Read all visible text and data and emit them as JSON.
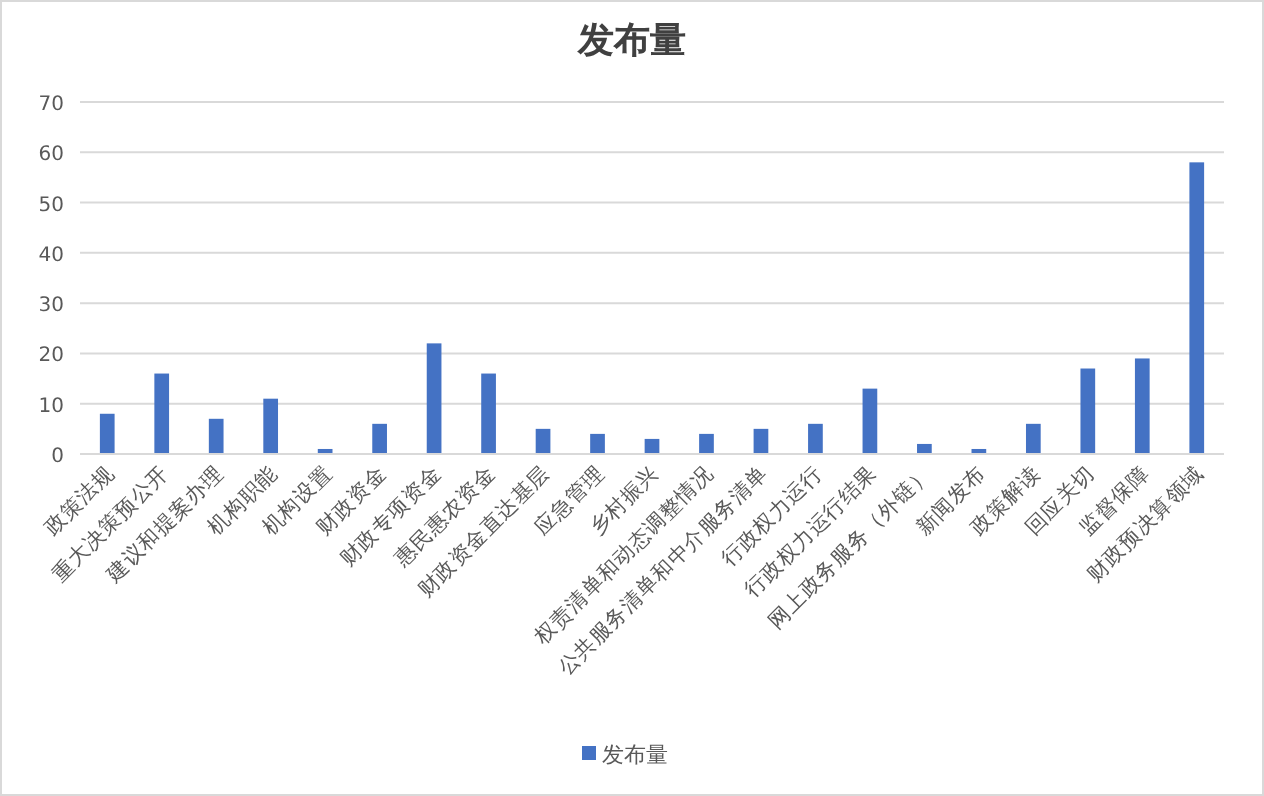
{
  "chart_data": {
    "type": "bar",
    "title": "发布量",
    "categories": [
      "政策法规",
      "重大决策预公开",
      "建议和提案办理",
      "机构职能",
      "机构设置",
      "财政资金",
      "财政专项资金",
      "惠民惠农资金",
      "财政资金直达基层",
      "应急管理",
      "乡村振兴",
      "权责清单和动态调整情况",
      "公共服务清单和中介服务清单",
      "行政权力运行",
      "行政权力运行结果",
      "网上政务服务（外链）",
      "新闻发布",
      "政策解读",
      "回应关切",
      "监督保障",
      "财政预决算领域"
    ],
    "series": [
      {
        "name": "发布量",
        "color": "#4472c4",
        "values": [
          8,
          16,
          7,
          11,
          1,
          6,
          22,
          16,
          5,
          4,
          3,
          4,
          5,
          6,
          13,
          2,
          1,
          6,
          17,
          19,
          58
        ]
      }
    ],
    "ylim": [
      0,
      70
    ],
    "yticks": [
      0,
      10,
      20,
      30,
      40,
      50,
      60,
      70
    ],
    "grid": "y",
    "legend": "bottom"
  }
}
